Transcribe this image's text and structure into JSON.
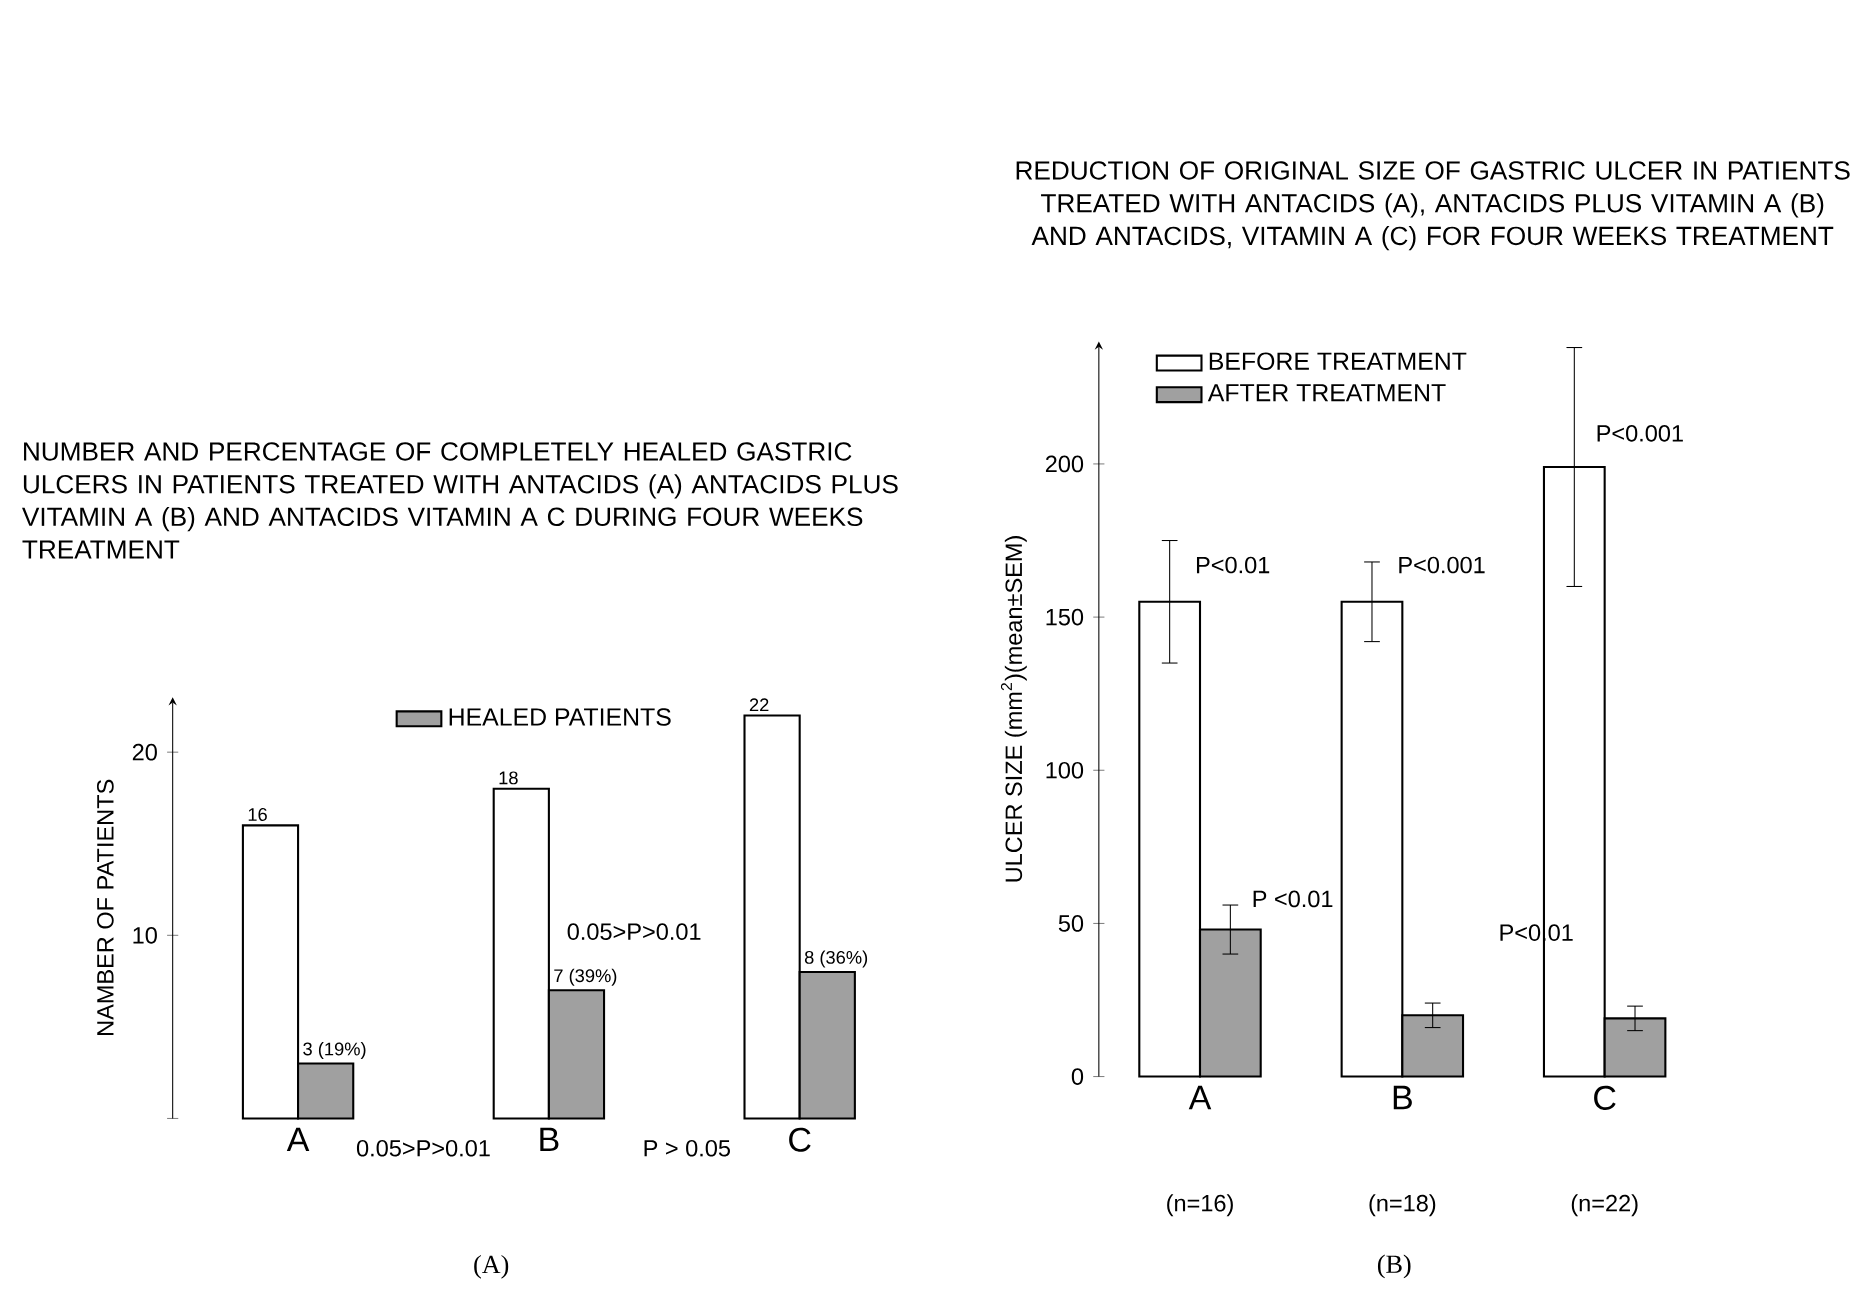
{
  "chart_data": [
    {
      "type": "bar",
      "title": "NUMBER AND PERCENTAGE OF COMPLETELY HEALED GASTRIC ULCERS IN PATIENTS TREATED WITH ANTACIDS (A) ANTACIDS PLUS VITAMIN A (B) AND ANTACIDS VITAMIN A C DURING FOUR WEEKS TREATMENT",
      "ylabel": "NAMBER OF PATIENTS",
      "categories": [
        "A",
        "B",
        "C"
      ],
      "series": [
        {
          "color": "#ffffff",
          "values": [
            16,
            18,
            22
          ],
          "value_labels": [
            "16",
            "18",
            "22"
          ]
        },
        {
          "name": "HEALED PATIENTS",
          "color": "#a0a0a0",
          "values": [
            3,
            7,
            8
          ],
          "value_labels": [
            "3 (19%)",
            "7 (39%)",
            "8 (36%)"
          ]
        }
      ],
      "ylim": [
        0,
        23
      ],
      "yticks": [
        {
          "value": 0,
          "label": null
        },
        10,
        20
      ],
      "legend": "top",
      "annotations": [
        "0.05>P>0.01",
        "0.05>P>0.01",
        "P > 0.05",
        "(A)"
      ]
    },
    {
      "type": "bar",
      "title": "REDUCTION OF ORIGINAL SIZE OF GASTRIC ULCER IN PATIENTS TREATED WITH ANTACIDS (A), ANTACIDS PLUS VITAMIN A (B) AND ANTACIDS, VITAMIN A (C) FOR FOUR WEEKS TREATMENT",
      "ylabel": "ULCER SIZE (mm$^{2}$)(mean±SEM)",
      "categories": [
        "A",
        "B",
        "C"
      ],
      "series": [
        {
          "name": "BEFORE TREATMENT",
          "color": "#ffffff",
          "values": [
            155,
            155,
            199
          ],
          "errors": [
            20,
            13,
            39
          ]
        },
        {
          "name": "AFTER TREATMENT",
          "color": "#a0a0a0",
          "values": [
            48,
            20,
            19
          ],
          "errors": [
            8,
            4,
            4
          ]
        }
      ],
      "ylim": [
        0,
        240
      ],
      "yticks": [
        0,
        50,
        100,
        150,
        200
      ],
      "legend": "top left",
      "annotations": [
        "P<0.01",
        "P<0.001",
        "P<0.001",
        "P <0.01",
        "P<0.01",
        "(n=16)",
        "(n=18)",
        "(n=22)",
        "(B)"
      ]
    }
  ]
}
